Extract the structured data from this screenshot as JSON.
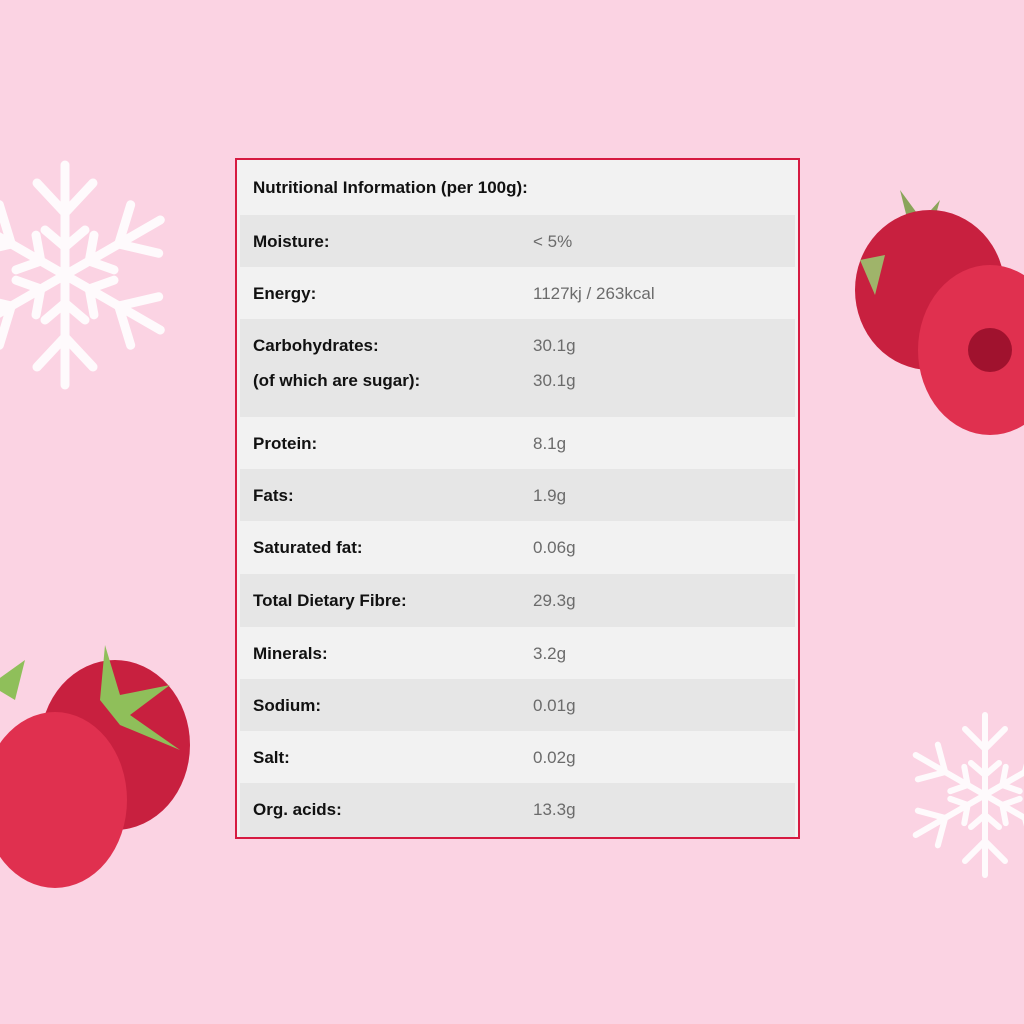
{
  "title": "Nutritional Information (per 100g):",
  "rows": [
    {
      "label": "Moisture:",
      "value": "< 5%"
    },
    {
      "label": "Energy:",
      "value": "1127kj / 263kcal"
    },
    {
      "label": "Carbohydrates:",
      "value": "30.1g",
      "sub_label": "(of which are sugar):",
      "sub_value": "30.1g"
    },
    {
      "label": "Protein:",
      "value": "8.1g"
    },
    {
      "label": "Fats:",
      "value": "1.9g"
    },
    {
      "label": "Saturated fat:",
      "value": "0.06g"
    },
    {
      "label": "Total Dietary Fibre:",
      "value": "29.3g"
    },
    {
      "label": "Minerals:",
      "value": "3.2g"
    },
    {
      "label": "Sodium:",
      "value": "0.01g"
    },
    {
      "label": "Salt:",
      "value": "0.02g"
    },
    {
      "label": "Org. acids:",
      "value": "13.3g"
    }
  ],
  "colors": {
    "background": "#fbd3e3",
    "border": "#d61a41",
    "row_light": "#f2f2f2",
    "row_dark": "#e6e6e6",
    "raspberry": "#d42a4a"
  }
}
